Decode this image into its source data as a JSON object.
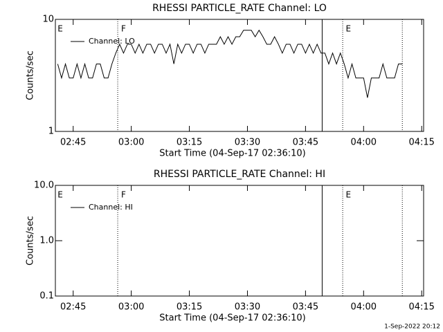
{
  "chart_data": [
    {
      "type": "line",
      "title": "RHESSI PARTICLE_RATE Channel: LO",
      "xlabel": "Start Time (04-Sep-17 02:36:10)",
      "ylabel": "Counts/sec",
      "log_y": true,
      "legend": "upper left",
      "xlim": [
        160.4,
        255.5
      ],
      "ylim": [
        1,
        10
      ],
      "xticks": [
        {
          "value": 165,
          "label": "02:45"
        },
        {
          "value": 180,
          "label": "03:00"
        },
        {
          "value": 195,
          "label": "03:15"
        },
        {
          "value": 210,
          "label": "03:30"
        },
        {
          "value": 225,
          "label": "03:45"
        },
        {
          "value": 240,
          "label": "04:00"
        },
        {
          "value": 255,
          "label": "04:15"
        }
      ],
      "yticks": [
        1,
        10
      ],
      "vlines": [
        {
          "x": 176.5,
          "style": "dotted"
        },
        {
          "x": 229.3,
          "style": "solid"
        },
        {
          "x": 234.6,
          "style": "dotted"
        },
        {
          "x": 250,
          "style": "dotted"
        }
      ],
      "flags": [
        {
          "text": "E",
          "x": 160.8
        },
        {
          "text": "F",
          "x": 177.2
        },
        {
          "text": "E",
          "x": 235.2
        }
      ],
      "x": [
        161,
        162,
        163,
        164,
        165,
        166,
        167,
        168,
        169,
        170,
        171,
        172,
        173,
        174,
        175,
        176,
        177,
        178,
        179,
        180,
        181,
        182,
        183,
        184,
        185,
        186,
        187,
        188,
        189,
        190,
        191,
        192,
        193,
        194,
        195,
        196,
        197,
        198,
        199,
        200,
        201,
        202,
        203,
        204,
        205,
        206,
        207,
        208,
        209,
        210,
        211,
        212,
        213,
        214,
        215,
        216,
        217,
        218,
        219,
        220,
        221,
        222,
        223,
        224,
        225,
        226,
        227,
        228,
        229,
        230,
        231,
        232,
        233,
        234,
        235,
        236,
        237,
        238,
        239,
        240,
        241,
        242,
        243,
        244,
        245,
        246,
        247,
        248,
        249,
        250
      ],
      "series": [
        {
          "name": "Channel: LO",
          "color": "#000000",
          "values": [
            4,
            3,
            4,
            3,
            3,
            4,
            3,
            4,
            3,
            3,
            4,
            4,
            3,
            3,
            4,
            5,
            6,
            5,
            6,
            6,
            5,
            6,
            5,
            6,
            6,
            5,
            6,
            6,
            5,
            6,
            4,
            6,
            5,
            6,
            6,
            5,
            6,
            6,
            5,
            6,
            6,
            6,
            7,
            6,
            7,
            6,
            7,
            7,
            8,
            8,
            8,
            7,
            8,
            7,
            6,
            6,
            7,
            6,
            5,
            6,
            6,
            5,
            6,
            6,
            5,
            6,
            5,
            6,
            5,
            5,
            4,
            5,
            4,
            5,
            4,
            3,
            4,
            3,
            3,
            3,
            2,
            3,
            3,
            3,
            4,
            3,
            3,
            3,
            4,
            4
          ]
        }
      ]
    },
    {
      "type": "line",
      "title": "RHESSI PARTICLE_RATE Channel: HI",
      "xlabel": "Start Time (04-Sep-17 02:36:10)",
      "ylabel": "Counts/sec",
      "log_y": true,
      "legend": "upper left",
      "xlim": [
        160.4,
        255.5
      ],
      "ylim": [
        0.1,
        10
      ],
      "xticks": [
        {
          "value": 165,
          "label": "02:45"
        },
        {
          "value": 180,
          "label": "03:00"
        },
        {
          "value": 195,
          "label": "03:15"
        },
        {
          "value": 210,
          "label": "03:30"
        },
        {
          "value": 225,
          "label": "03:45"
        },
        {
          "value": 240,
          "label": "04:00"
        },
        {
          "value": 255,
          "label": "04:15"
        }
      ],
      "yticks": [
        0.1,
        {
          "value": 1,
          "label": "1.0"
        },
        {
          "value": 10,
          "label": "10.0"
        }
      ],
      "vlines": [
        {
          "x": 176.5,
          "style": "dotted"
        },
        {
          "x": 229.3,
          "style": "solid"
        },
        {
          "x": 234.6,
          "style": "dotted"
        },
        {
          "x": 250,
          "style": "dotted"
        }
      ],
      "flags": [
        {
          "text": "E",
          "x": 160.8
        },
        {
          "text": "F",
          "x": 177.2
        },
        {
          "text": "E",
          "x": 235.2
        }
      ],
      "x": [],
      "series": [
        {
          "name": "Channel: HI",
          "color": "#000000",
          "values": []
        }
      ]
    }
  ],
  "timestamp": "1-Sep-2022 20:12"
}
